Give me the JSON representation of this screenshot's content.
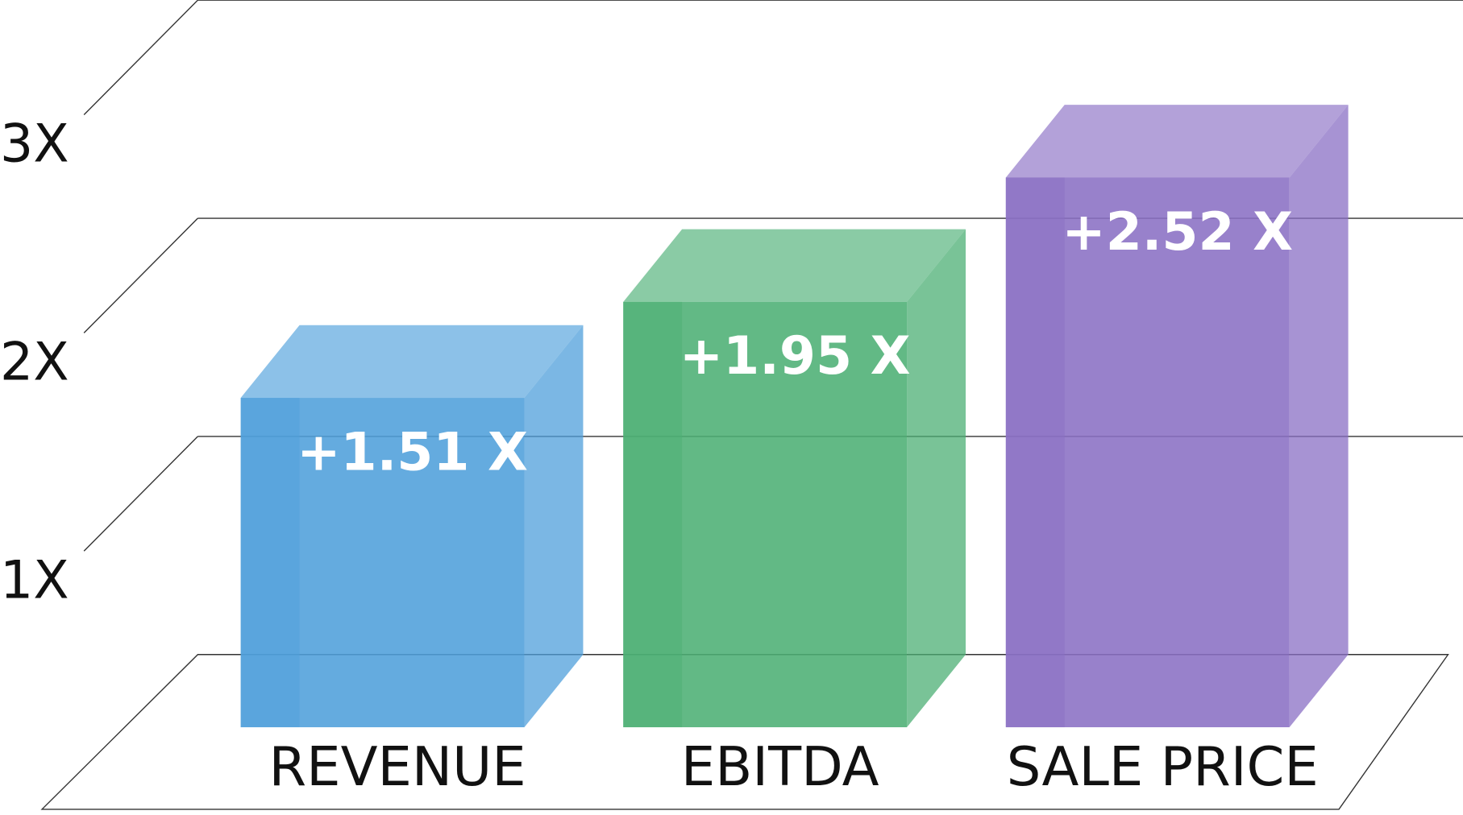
{
  "chart_data": {
    "type": "bar3d",
    "categories": [
      "REVENUE",
      "EBITDA",
      "SALE PRICE"
    ],
    "values": [
      1.51,
      1.95,
      2.52
    ],
    "value_labels": [
      "+1.51 X",
      "+1.95 X",
      "+2.52 X"
    ],
    "colors": [
      "#4f9fdb",
      "#4caf74",
      "#8a6fc4"
    ],
    "ylim": [
      0,
      3
    ],
    "yticks": [
      {
        "value": 1,
        "label": "1X"
      },
      {
        "value": 2,
        "label": "2X"
      },
      {
        "value": 3,
        "label": "3X"
      }
    ],
    "grid": true
  }
}
